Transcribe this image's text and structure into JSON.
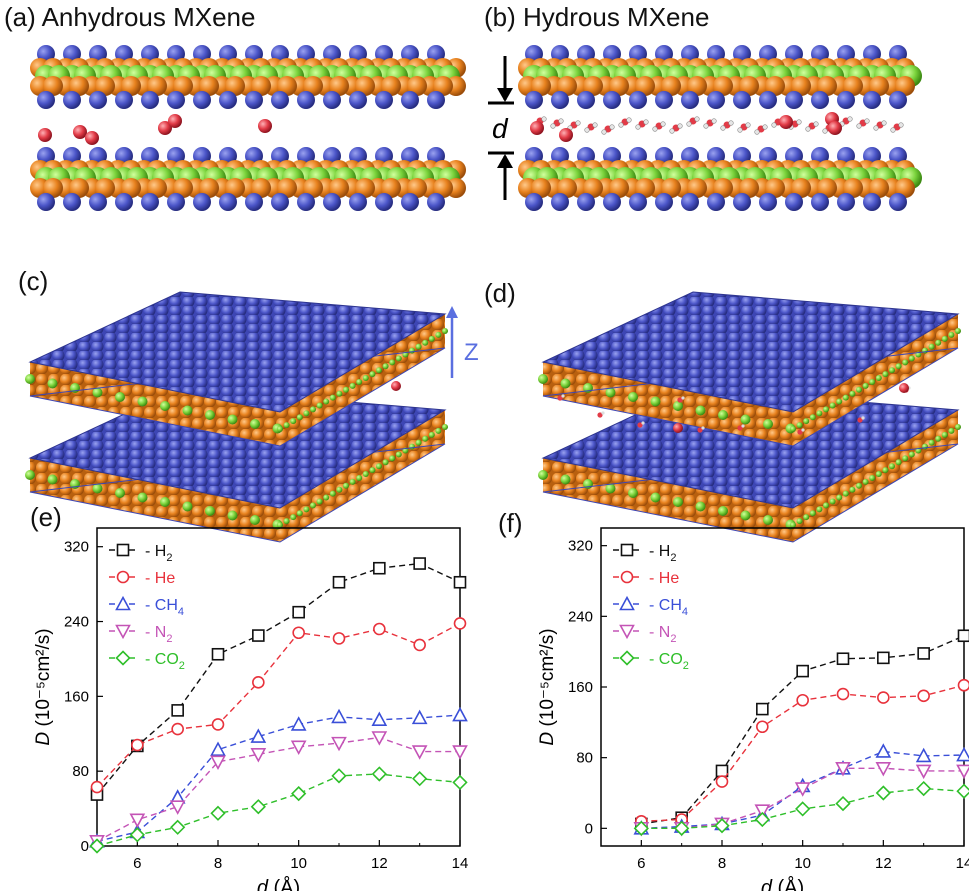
{
  "panels": {
    "a": {
      "label": "(a)",
      "title": "Anhydrous MXene"
    },
    "b": {
      "label": "(b)",
      "title": "Hydrous MXene",
      "gap_symbol": "d"
    },
    "c": {
      "label": "(c)",
      "axis": "Z"
    },
    "d": {
      "label": "(d)"
    },
    "e": {
      "label": "(e)"
    },
    "f": {
      "label": "(f)"
    }
  },
  "colors": {
    "ti_blue": "#4b55c8",
    "c_orange": "#e8821e",
    "m_green": "#7ad33c",
    "oxygen_red": "#e23b47",
    "h2": "#111111",
    "he": "#e8323c",
    "ch4": "#3a4fd8",
    "n2": "#c454b6",
    "co2": "#2fbf2a",
    "axis_arrow": "#5a6fe0"
  },
  "chart_data": [
    {
      "type": "line",
      "panel": "(e)",
      "title": "",
      "xlabel": "d (Å)",
      "ylabel": "D (10⁻⁵cm²/s)",
      "xlim": [
        5,
        14
      ],
      "ylim": [
        0,
        340
      ],
      "xticks": [
        6,
        8,
        10,
        12,
        14
      ],
      "yticks": [
        0,
        80,
        160,
        240,
        320
      ],
      "legend": "top-left",
      "x": [
        5,
        6,
        7,
        8,
        9,
        10,
        11,
        12,
        13,
        14
      ],
      "series": [
        {
          "name": "H2",
          "label": "H",
          "sub": "2",
          "marker": "square",
          "color": "#111111",
          "values": [
            55,
            107,
            145,
            205,
            225,
            250,
            282,
            297,
            302,
            282
          ]
        },
        {
          "name": "He",
          "label": "He",
          "sub": "",
          "marker": "circle",
          "color": "#e8323c",
          "values": [
            63,
            108,
            125,
            130,
            175,
            228,
            222,
            232,
            215,
            238
          ]
        },
        {
          "name": "CH4",
          "label": "CH",
          "sub": "4",
          "marker": "triangle-up",
          "color": "#3a4fd8",
          "values": [
            5,
            15,
            52,
            103,
            117,
            130,
            138,
            135,
            137,
            140
          ]
        },
        {
          "name": "N2",
          "label": "N",
          "sub": "2",
          "marker": "triangle-down",
          "color": "#c454b6",
          "values": [
            5,
            28,
            42,
            90,
            98,
            106,
            110,
            116,
            101,
            101
          ]
        },
        {
          "name": "CO2",
          "label": "CO",
          "sub": "2",
          "marker": "diamond",
          "color": "#2fbf2a",
          "values": [
            0,
            12,
            20,
            35,
            42,
            56,
            75,
            77,
            72,
            68
          ]
        }
      ]
    },
    {
      "type": "line",
      "panel": "(f)",
      "title": "",
      "xlabel": "d (Å)",
      "ylabel": "D (10⁻⁵cm²/s)",
      "xlim": [
        5,
        14
      ],
      "ylim": [
        -20,
        340
      ],
      "xticks": [
        6,
        8,
        10,
        12,
        14
      ],
      "yticks": [
        0,
        80,
        160,
        240,
        320
      ],
      "legend": "top-left",
      "x": [
        6,
        7,
        8,
        9,
        10,
        11,
        12,
        13,
        14
      ],
      "series": [
        {
          "name": "H2",
          "label": "H",
          "sub": "2",
          "marker": "square",
          "color": "#111111",
          "values": [
            5,
            12,
            65,
            135,
            178,
            192,
            193,
            198,
            218
          ]
        },
        {
          "name": "He",
          "label": "He",
          "sub": "",
          "marker": "circle",
          "color": "#e8323c",
          "values": [
            8,
            10,
            53,
            115,
            145,
            152,
            148,
            150,
            162
          ]
        },
        {
          "name": "CH4",
          "label": "CH",
          "sub": "4",
          "marker": "triangle-up",
          "color": "#3a4fd8",
          "values": [
            0,
            2,
            5,
            15,
            48,
            68,
            87,
            82,
            83
          ]
        },
        {
          "name": "N2",
          "label": "N",
          "sub": "2",
          "marker": "triangle-down",
          "color": "#c454b6",
          "values": [
            0,
            0,
            5,
            20,
            45,
            68,
            68,
            65,
            65
          ]
        },
        {
          "name": "CO2",
          "label": "CO",
          "sub": "2",
          "marker": "diamond",
          "color": "#2fbf2a",
          "values": [
            0,
            0,
            3,
            10,
            22,
            28,
            40,
            45,
            42
          ]
        }
      ]
    }
  ]
}
